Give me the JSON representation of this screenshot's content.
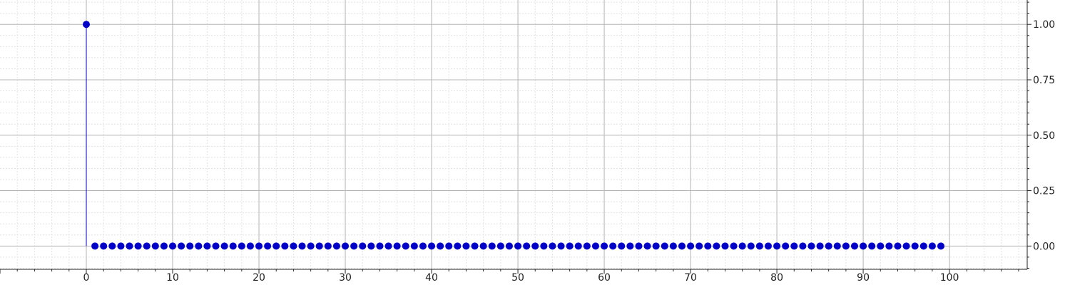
{
  "chart_data": {
    "type": "scatter",
    "style": "stem",
    "x_range": [
      -10,
      109
    ],
    "y_range": [
      -0.105,
      1.11
    ],
    "x_ticks": [
      0,
      10,
      20,
      30,
      40,
      50,
      60,
      70,
      80,
      90,
      100
    ],
    "x_tick_labels": [
      "0",
      "10",
      "20",
      "30",
      "40",
      "50",
      "60",
      "70",
      "80",
      "90",
      "100"
    ],
    "y_ticks": [
      0,
      0.25,
      0.5,
      0.75,
      1.0
    ],
    "y_tick_labels": [
      "0.00",
      "0.25",
      "0.50",
      "0.75",
      "1.00"
    ],
    "y_axis_side": "right",
    "grid": true,
    "minor_grid": true,
    "series": [
      {
        "color": "#0000c8",
        "x": [
          0,
          1,
          2,
          3,
          4,
          5,
          6,
          7,
          8,
          9,
          10,
          11,
          12,
          13,
          14,
          15,
          16,
          17,
          18,
          19,
          20,
          21,
          22,
          23,
          24,
          25,
          26,
          27,
          28,
          29,
          30,
          31,
          32,
          33,
          34,
          35,
          36,
          37,
          38,
          39,
          40,
          41,
          42,
          43,
          44,
          45,
          46,
          47,
          48,
          49,
          50,
          51,
          52,
          53,
          54,
          55,
          56,
          57,
          58,
          59,
          60,
          61,
          62,
          63,
          64,
          65,
          66,
          67,
          68,
          69,
          70,
          71,
          72,
          73,
          74,
          75,
          76,
          77,
          78,
          79,
          80,
          81,
          82,
          83,
          84,
          85,
          86,
          87,
          88,
          89,
          90,
          91,
          92,
          93,
          94,
          95,
          96,
          97,
          98,
          99
        ],
        "y": [
          1,
          0,
          0,
          0,
          0,
          0,
          0,
          0,
          0,
          0,
          0,
          0,
          0,
          0,
          0,
          0,
          0,
          0,
          0,
          0,
          0,
          0,
          0,
          0,
          0,
          0,
          0,
          0,
          0,
          0,
          0,
          0,
          0,
          0,
          0,
          0,
          0,
          0,
          0,
          0,
          0,
          0,
          0,
          0,
          0,
          0,
          0,
          0,
          0,
          0,
          0,
          0,
          0,
          0,
          0,
          0,
          0,
          0,
          0,
          0,
          0,
          0,
          0,
          0,
          0,
          0,
          0,
          0,
          0,
          0,
          0,
          0,
          0,
          0,
          0,
          0,
          0,
          0,
          0,
          0,
          0,
          0,
          0,
          0,
          0,
          0,
          0,
          0,
          0,
          0,
          0,
          0,
          0,
          0,
          0,
          0,
          0,
          0,
          0,
          0
        ]
      }
    ]
  }
}
